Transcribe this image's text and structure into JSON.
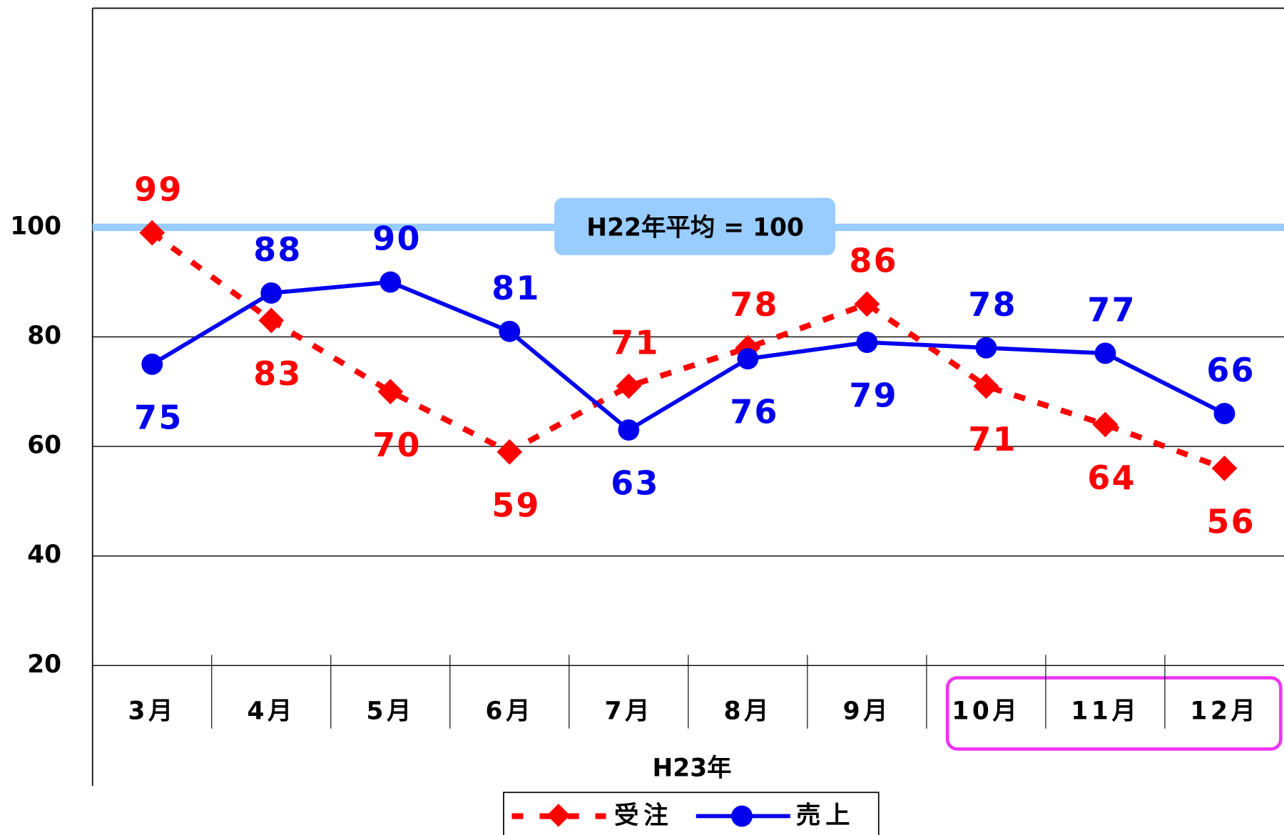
{
  "chart_data": {
    "type": "line",
    "categories": [
      "3月",
      "4月",
      "5月",
      "6月",
      "7月",
      "8月",
      "9月",
      "10月",
      "11月",
      "12月"
    ],
    "series": [
      {
        "name": "受注",
        "color": "#ff0000",
        "values": [
          99,
          83,
          70,
          59,
          71,
          78,
          86,
          71,
          64,
          56
        ]
      },
      {
        "name": "売上",
        "color": "#0000ee",
        "values": [
          75,
          88,
          90,
          81,
          63,
          76,
          79,
          78,
          77,
          66
        ]
      }
    ],
    "ylim": [
      20,
      140
    ],
    "yticks": [
      20,
      40,
      60,
      80,
      100
    ],
    "grid": true,
    "xlabel": "H23年",
    "reference": {
      "value": 100,
      "label": "H22年平均 = 100",
      "color": "#99ccff"
    },
    "legend": "bottom"
  }
}
